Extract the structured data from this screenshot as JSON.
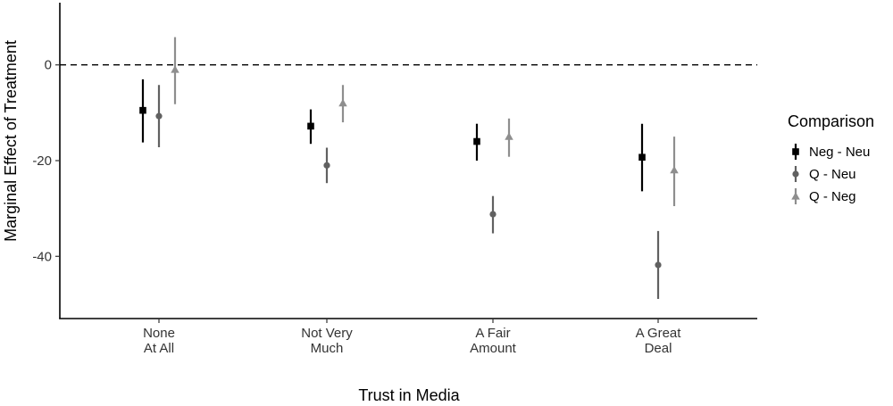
{
  "chart_data": {
    "type": "scatter",
    "subtype": "point-range",
    "xlabel": "Trust in Media",
    "ylabel": "Marginal Effect of Treatment",
    "categories": [
      [
        "None",
        "At All"
      ],
      [
        "Not Very",
        "Much"
      ],
      [
        "A Fair",
        "Amount"
      ],
      [
        "A Great",
        "Deal"
      ]
    ],
    "ylim": [
      -53,
      13
    ],
    "yticks": [
      0,
      -20,
      -40
    ],
    "ytick_labels": [
      "0",
      "-20",
      "-40"
    ],
    "reference_line": {
      "y": 0,
      "style": "dashed"
    },
    "grid": false,
    "legend": {
      "title": "Comparison",
      "position": "right"
    },
    "series": [
      {
        "name": "Neg - Neu",
        "marker": "square",
        "color": "#000000",
        "values": [
          -9.5,
          -12.8,
          -16.0,
          -19.3
        ],
        "lower": [
          -16.2,
          -16.5,
          -20.0,
          -26.4
        ],
        "upper": [
          -3.0,
          -9.3,
          -12.3,
          -12.3
        ]
      },
      {
        "name": "Q - Neu",
        "marker": "circle",
        "color": "#616161",
        "values": [
          -10.7,
          -21.0,
          -31.2,
          -41.8
        ],
        "lower": [
          -17.2,
          -24.7,
          -35.2,
          -48.9
        ],
        "upper": [
          -4.2,
          -17.3,
          -27.4,
          -34.7
        ]
      },
      {
        "name": "Q - Neg",
        "marker": "triangle",
        "color": "#8e8e8e",
        "values": [
          -1.0,
          -8.0,
          -15.0,
          -22.0
        ],
        "lower": [
          -8.2,
          -12.0,
          -19.2,
          -29.5
        ],
        "upper": [
          5.8,
          -4.2,
          -11.2,
          -15.0
        ]
      }
    ]
  }
}
